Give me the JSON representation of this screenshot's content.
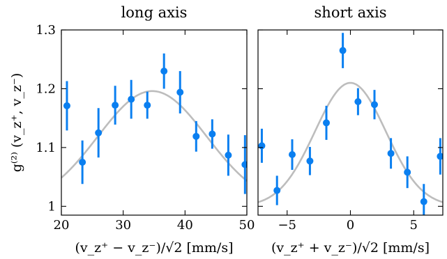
{
  "chart_data": {
    "type": "scatter",
    "ylabel": "g⁽²⁾ (v_z⁺, v_z⁻)",
    "ylim": [
      0.985,
      1.3
    ],
    "yticks": [
      1,
      1.1,
      1.2,
      1.3
    ],
    "yticklabels": [
      "1",
      "1.1",
      "1.2",
      "1.3"
    ],
    "colors": {
      "points": "#0a7ff0",
      "fit": "#bdbdbd"
    },
    "grid": false,
    "panels": [
      {
        "title": "long axis",
        "xlabel": "(v_z⁺ − v_z⁻)/√2  [mm/s]",
        "xlim": [
          20,
          50
        ],
        "xticks": [
          20,
          30,
          40,
          50
        ],
        "xticklabels": [
          "20",
          "30",
          "40",
          "50"
        ],
        "points": [
          {
            "x": 20.9,
            "y": 1.171,
            "err": 0.042
          },
          {
            "x": 23.4,
            "y": 1.075,
            "err": 0.037
          },
          {
            "x": 26.0,
            "y": 1.125,
            "err": 0.042
          },
          {
            "x": 28.7,
            "y": 1.172,
            "err": 0.033
          },
          {
            "x": 31.3,
            "y": 1.182,
            "err": 0.033
          },
          {
            "x": 33.9,
            "y": 1.172,
            "err": 0.023
          },
          {
            "x": 36.6,
            "y": 1.23,
            "err": 0.03
          },
          {
            "x": 39.2,
            "y": 1.194,
            "err": 0.036
          },
          {
            "x": 41.8,
            "y": 1.119,
            "err": 0.026
          },
          {
            "x": 44.4,
            "y": 1.123,
            "err": 0.025
          },
          {
            "x": 47.0,
            "y": 1.087,
            "err": 0.035
          },
          {
            "x": 49.7,
            "y": 1.071,
            "err": 0.05
          }
        ],
        "fit": {
          "type": "gaussian",
          "amplitude": 1.196,
          "center": 34.7,
          "sigma": 8.8,
          "baseline": 1.0
        }
      },
      {
        "title": "short axis",
        "xlabel": "(v_z⁺ + v_z⁻)/√2  [mm/s]",
        "xlim": [
          -7.3,
          7.3
        ],
        "xticks": [
          -5,
          0,
          5
        ],
        "xticklabels": [
          "−5",
          "0",
          "5"
        ],
        "points": [
          {
            "x": -7.0,
            "y": 1.103,
            "err": 0.029
          },
          {
            "x": -5.8,
            "y": 1.027,
            "err": 0.025
          },
          {
            "x": -4.6,
            "y": 1.088,
            "err": 0.026
          },
          {
            "x": -3.2,
            "y": 1.077,
            "err": 0.024
          },
          {
            "x": -1.9,
            "y": 1.142,
            "err": 0.029
          },
          {
            "x": -0.6,
            "y": 1.265,
            "err": 0.03
          },
          {
            "x": 0.6,
            "y": 1.178,
            "err": 0.023
          },
          {
            "x": 1.9,
            "y": 1.173,
            "err": 0.025
          },
          {
            "x": 3.2,
            "y": 1.09,
            "err": 0.026
          },
          {
            "x": 4.5,
            "y": 1.058,
            "err": 0.027
          },
          {
            "x": 5.8,
            "y": 1.008,
            "err": 0.03
          },
          {
            "x": 7.1,
            "y": 1.085,
            "err": 0.031
          }
        ],
        "fit": {
          "type": "gaussian",
          "amplitude": 1.21,
          "center": 0.0,
          "sigma": 2.8,
          "baseline": 1.0
        }
      }
    ]
  }
}
